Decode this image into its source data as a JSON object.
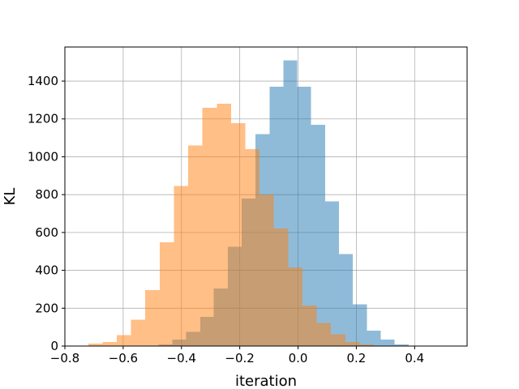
{
  "chart_data": {
    "type": "histogram",
    "title": "",
    "xlabel": "iteration",
    "ylabel": "KL",
    "xlim": [
      -0.8,
      0.58
    ],
    "ylim": [
      0,
      1580
    ],
    "xticks": [
      -0.8,
      -0.6,
      -0.4,
      -0.2,
      0.0,
      0.2,
      0.4
    ],
    "xtick_labels": [
      "−0.8",
      "−0.6",
      "−0.4",
      "−0.2",
      "0.0",
      "0.2",
      "0.4"
    ],
    "yticks": [
      0,
      200,
      400,
      600,
      800,
      1000,
      1200,
      1400
    ],
    "ytick_labels": [
      "0",
      "200",
      "400",
      "600",
      "800",
      "1000",
      "1200",
      "1400"
    ],
    "grid": true,
    "legend": "none",
    "series": [
      {
        "color": "#1f77b4",
        "opacity": 0.5,
        "bins": [
          {
            "x0": -0.527,
            "x1": -0.479,
            "count": 3
          },
          {
            "x0": -0.479,
            "x1": -0.432,
            "count": 8
          },
          {
            "x0": -0.432,
            "x1": -0.384,
            "count": 35
          },
          {
            "x0": -0.384,
            "x1": -0.336,
            "count": 75
          },
          {
            "x0": -0.336,
            "x1": -0.289,
            "count": 155
          },
          {
            "x0": -0.289,
            "x1": -0.241,
            "count": 305
          },
          {
            "x0": -0.241,
            "x1": -0.193,
            "count": 525
          },
          {
            "x0": -0.193,
            "x1": -0.146,
            "count": 780
          },
          {
            "x0": -0.146,
            "x1": -0.098,
            "count": 1120
          },
          {
            "x0": -0.098,
            "x1": -0.05,
            "count": 1370
          },
          {
            "x0": -0.05,
            "x1": -0.003,
            "count": 1510
          },
          {
            "x0": -0.003,
            "x1": 0.045,
            "count": 1370
          },
          {
            "x0": 0.045,
            "x1": 0.093,
            "count": 1170
          },
          {
            "x0": 0.093,
            "x1": 0.14,
            "count": 765
          },
          {
            "x0": 0.14,
            "x1": 0.188,
            "count": 485
          },
          {
            "x0": 0.188,
            "x1": 0.236,
            "count": 220
          },
          {
            "x0": 0.236,
            "x1": 0.283,
            "count": 82
          },
          {
            "x0": 0.283,
            "x1": 0.331,
            "count": 35
          },
          {
            "x0": 0.331,
            "x1": 0.379,
            "count": 8
          },
          {
            "x0": 0.379,
            "x1": 0.426,
            "count": 2
          },
          {
            "x0": 0.426,
            "x1": 0.474,
            "count": 1
          },
          {
            "x0": 0.474,
            "x1": 0.522,
            "count": 1
          }
        ]
      },
      {
        "color": "#ff7f0e",
        "opacity": 0.5,
        "bins": [
          {
            "x0": -0.72,
            "x1": -0.671,
            "count": 12
          },
          {
            "x0": -0.671,
            "x1": -0.622,
            "count": 22
          },
          {
            "x0": -0.622,
            "x1": -0.573,
            "count": 58
          },
          {
            "x0": -0.573,
            "x1": -0.524,
            "count": 140
          },
          {
            "x0": -0.524,
            "x1": -0.475,
            "count": 295
          },
          {
            "x0": -0.475,
            "x1": -0.426,
            "count": 548
          },
          {
            "x0": -0.426,
            "x1": -0.377,
            "count": 845
          },
          {
            "x0": -0.377,
            "x1": -0.328,
            "count": 1060
          },
          {
            "x0": -0.328,
            "x1": -0.279,
            "count": 1258
          },
          {
            "x0": -0.279,
            "x1": -0.23,
            "count": 1280
          },
          {
            "x0": -0.23,
            "x1": -0.181,
            "count": 1178
          },
          {
            "x0": -0.181,
            "x1": -0.132,
            "count": 1040
          },
          {
            "x0": -0.132,
            "x1": -0.083,
            "count": 800
          },
          {
            "x0": -0.083,
            "x1": -0.034,
            "count": 620
          },
          {
            "x0": -0.034,
            "x1": 0.015,
            "count": 415
          },
          {
            "x0": 0.015,
            "x1": 0.064,
            "count": 215
          },
          {
            "x0": 0.064,
            "x1": 0.113,
            "count": 122
          },
          {
            "x0": 0.113,
            "x1": 0.162,
            "count": 62
          },
          {
            "x0": 0.162,
            "x1": 0.211,
            "count": 22
          },
          {
            "x0": 0.211,
            "x1": 0.26,
            "count": 8
          }
        ]
      }
    ]
  }
}
